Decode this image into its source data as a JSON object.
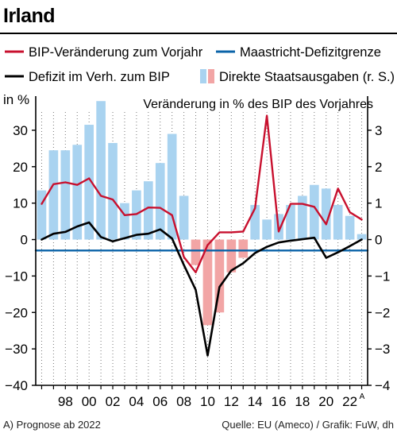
{
  "title": "Irland",
  "legend": [
    {
      "label": "BIP-Veränderung zum Vorjahr",
      "color": "#c8102e",
      "kind": "line"
    },
    {
      "label": "Maastricht-Defizitgrenze",
      "color": "#0a63a8",
      "kind": "line"
    },
    {
      "label": "Defizit im Verh. zum BIP",
      "color": "#000000",
      "kind": "line"
    },
    {
      "label": "Direkte Staatsausgaben (r. S.)",
      "color_pos": "#a9d3f0",
      "color_neg": "#f2a5a5",
      "kind": "bar"
    }
  ],
  "left_axis_label": "in %",
  "right_axis_label": "Veränderung in % des BIP des Vorjahres",
  "footnote": "A) Prognose ab 2022",
  "source": "Quelle: EU (Ameco) / Grafik: FuW, dh",
  "chart_data": {
    "type": "bar+line",
    "x": [
      1996,
      1997,
      1998,
      1999,
      2000,
      2001,
      2002,
      2003,
      2004,
      2005,
      2006,
      2007,
      2008,
      2009,
      2010,
      2011,
      2012,
      2013,
      2014,
      2015,
      2016,
      2017,
      2018,
      2019,
      2020,
      2021,
      2022,
      2023
    ],
    "x_tick_labels": [
      {
        "year": 1998,
        "label": "98"
      },
      {
        "year": 2000,
        "label": "00"
      },
      {
        "year": 2002,
        "label": "02"
      },
      {
        "year": 2004,
        "label": "04"
      },
      {
        "year": 2006,
        "label": "06"
      },
      {
        "year": 2008,
        "label": "08"
      },
      {
        "year": 2010,
        "label": "10"
      },
      {
        "year": 2012,
        "label": "12"
      },
      {
        "year": 2014,
        "label": "14"
      },
      {
        "year": 2016,
        "label": "16"
      },
      {
        "year": 2018,
        "label": "18"
      },
      {
        "year": 2020,
        "label": "20"
      },
      {
        "year": 2022,
        "label": "22",
        "sup": "A"
      }
    ],
    "left_axis": {
      "ylim": [
        -40,
        35
      ],
      "ticks": [
        -40,
        -30,
        -20,
        -10,
        0,
        10,
        20,
        30
      ],
      "tick_labels": [
        "−40",
        "−30",
        "−20",
        "−10",
        "0",
        "10",
        "20",
        "30"
      ]
    },
    "right_axis": {
      "ylim": [
        -4,
        3.5
      ],
      "ticks": [
        -4,
        -3,
        -2,
        -1,
        0,
        1,
        2,
        3
      ],
      "tick_labels": [
        "−4",
        "−3",
        "−2",
        "−1",
        "0",
        "1",
        "2",
        "3"
      ]
    },
    "series": [
      {
        "name": "Direkte Staatsausgaben (r. S.)",
        "axis": "right",
        "type": "bar",
        "values": [
          1.35,
          2.45,
          2.45,
          2.6,
          3.15,
          3.8,
          2.65,
          1.0,
          1.35,
          1.6,
          2.1,
          2.9,
          1.2,
          -0.7,
          -2.35,
          -2.0,
          -0.9,
          -0.5,
          0.95,
          0.55,
          0.7,
          0.95,
          1.2,
          1.5,
          1.4,
          0.95,
          0.65,
          0.15
        ]
      },
      {
        "name": "BIP-Veränderung zum Vorjahr",
        "axis": "left",
        "type": "line",
        "values": [
          9.8,
          15.2,
          15.7,
          15.0,
          16.8,
          12.0,
          11.0,
          6.7,
          7.0,
          8.8,
          8.7,
          6.7,
          -4.8,
          -9.0,
          -1.5,
          2.0,
          2.0,
          2.2,
          8.6,
          34.0,
          2.2,
          9.8,
          9.8,
          9.0,
          4.2,
          14.0,
          7.5,
          5.5
        ]
      },
      {
        "name": "Defizit im Verh. zum BIP",
        "axis": "left",
        "type": "line",
        "values": [
          0.0,
          1.6,
          2.1,
          3.6,
          4.7,
          0.7,
          -0.5,
          0.4,
          1.3,
          1.6,
          2.8,
          0.3,
          -7.0,
          -13.8,
          -31.8,
          -13.0,
          -8.5,
          -6.5,
          -3.7,
          -2.0,
          -0.8,
          -0.3,
          0.1,
          0.5,
          -5.0,
          -3.5,
          -1.8,
          0.0
        ]
      },
      {
        "name": "Maastricht-Defizitgrenze",
        "axis": "left",
        "type": "line",
        "values": [
          -3,
          -3,
          -3,
          -3,
          -3,
          -3,
          -3,
          -3,
          -3,
          -3,
          -3,
          -3,
          -3,
          -3,
          -3,
          -3,
          -3,
          -3,
          -3,
          -3,
          -3,
          -3,
          -3,
          -3,
          -3,
          -3,
          -3,
          -3
        ]
      }
    ],
    "grid": "vertical-dotted",
    "legend_position": "top"
  }
}
